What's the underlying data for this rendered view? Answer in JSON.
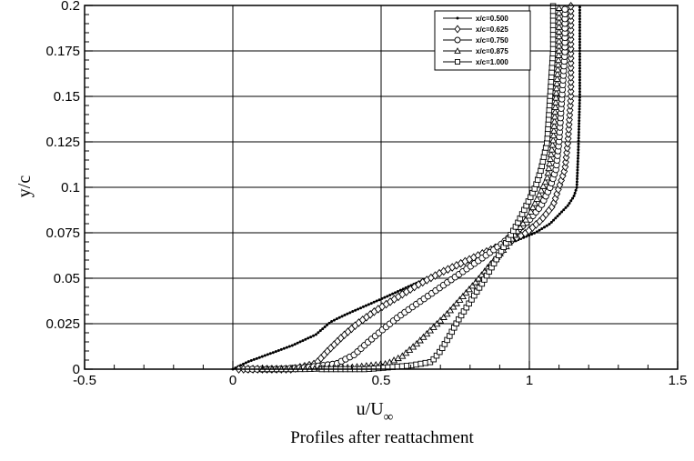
{
  "chart_data": {
    "type": "line",
    "title": "",
    "xlabel": "u/U",
    "xlabel_subscript": "∞",
    "ylabel": "y/c",
    "caption": "Profiles after reattachment",
    "xlim": [
      -0.5,
      1.5
    ],
    "ylim": [
      0,
      0.2
    ],
    "x_ticks": [
      "-0.5",
      "0",
      "0.5",
      "1",
      "1.5"
    ],
    "y_ticks": [
      "0",
      "0.025",
      "0.05",
      "0.075",
      "0.1",
      "0.125",
      "0.15",
      "0.175",
      "0.2"
    ],
    "grid": true,
    "legend_position": "top-right",
    "series": [
      {
        "name": "x/c=0.500",
        "marker": "star",
        "x": [
          0.0,
          0.05,
          0.1,
          0.2,
          0.28,
          0.33,
          0.38,
          0.45,
          0.52,
          0.6,
          0.67,
          0.75,
          0.83,
          0.9,
          0.96,
          1.02,
          1.07,
          1.1,
          1.13,
          1.15,
          1.16,
          1.165,
          1.17,
          1.17
        ],
        "y": [
          0.0,
          0.004,
          0.007,
          0.013,
          0.019,
          0.026,
          0.03,
          0.035,
          0.04,
          0.046,
          0.051,
          0.056,
          0.062,
          0.067,
          0.071,
          0.075,
          0.08,
          0.085,
          0.09,
          0.095,
          0.1,
          0.12,
          0.15,
          0.2
        ]
      },
      {
        "name": "x/c=0.625",
        "marker": "diamond",
        "x": [
          0.02,
          0.1,
          0.2,
          0.28,
          0.32,
          0.37,
          0.42,
          0.48,
          0.55,
          0.62,
          0.7,
          0.78,
          0.86,
          0.93,
          0.99,
          1.04,
          1.08,
          1.1,
          1.12,
          1.13,
          1.14,
          1.14,
          1.14
        ],
        "y": [
          0.0,
          0.0,
          0.0,
          0.003,
          0.01,
          0.018,
          0.025,
          0.032,
          0.039,
          0.046,
          0.053,
          0.059,
          0.065,
          0.07,
          0.075,
          0.082,
          0.09,
          0.1,
          0.11,
          0.125,
          0.15,
          0.175,
          0.2
        ]
      },
      {
        "name": "x/c=0.750",
        "marker": "circle",
        "x": [
          0.05,
          0.15,
          0.25,
          0.35,
          0.41,
          0.45,
          0.5,
          0.56,
          0.63,
          0.7,
          0.77,
          0.84,
          0.9,
          0.95,
          1.0,
          1.04,
          1.07,
          1.09,
          1.1,
          1.11,
          1.12,
          1.12
        ],
        "y": [
          0.0,
          0.0,
          0.001,
          0.003,
          0.008,
          0.014,
          0.021,
          0.029,
          0.037,
          0.045,
          0.053,
          0.061,
          0.068,
          0.075,
          0.082,
          0.09,
          0.1,
          0.11,
          0.125,
          0.15,
          0.175,
          0.2
        ]
      },
      {
        "name": "x/c=0.875",
        "marker": "triangle",
        "x": [
          0.1,
          0.25,
          0.4,
          0.52,
          0.57,
          0.62,
          0.67,
          0.72,
          0.77,
          0.82,
          0.87,
          0.92,
          0.96,
          1.0,
          1.03,
          1.06,
          1.07,
          1.08,
          1.09,
          1.1,
          1.1
        ],
        "y": [
          0.0,
          0.0,
          0.001,
          0.003,
          0.007,
          0.014,
          0.022,
          0.03,
          0.039,
          0.048,
          0.058,
          0.067,
          0.076,
          0.085,
          0.095,
          0.105,
          0.115,
          0.125,
          0.15,
          0.175,
          0.2
        ]
      },
      {
        "name": "x/c=1.000",
        "marker": "square",
        "x": [
          0.3,
          0.45,
          0.6,
          0.67,
          0.7,
          0.73,
          0.76,
          0.8,
          0.84,
          0.88,
          0.92,
          0.96,
          0.99,
          1.02,
          1.04,
          1.06,
          1.07,
          1.08,
          1.08
        ],
        "y": [
          0.0,
          0.0,
          0.002,
          0.004,
          0.01,
          0.018,
          0.027,
          0.037,
          0.047,
          0.058,
          0.069,
          0.08,
          0.09,
          0.1,
          0.11,
          0.125,
          0.15,
          0.175,
          0.2
        ]
      }
    ]
  }
}
